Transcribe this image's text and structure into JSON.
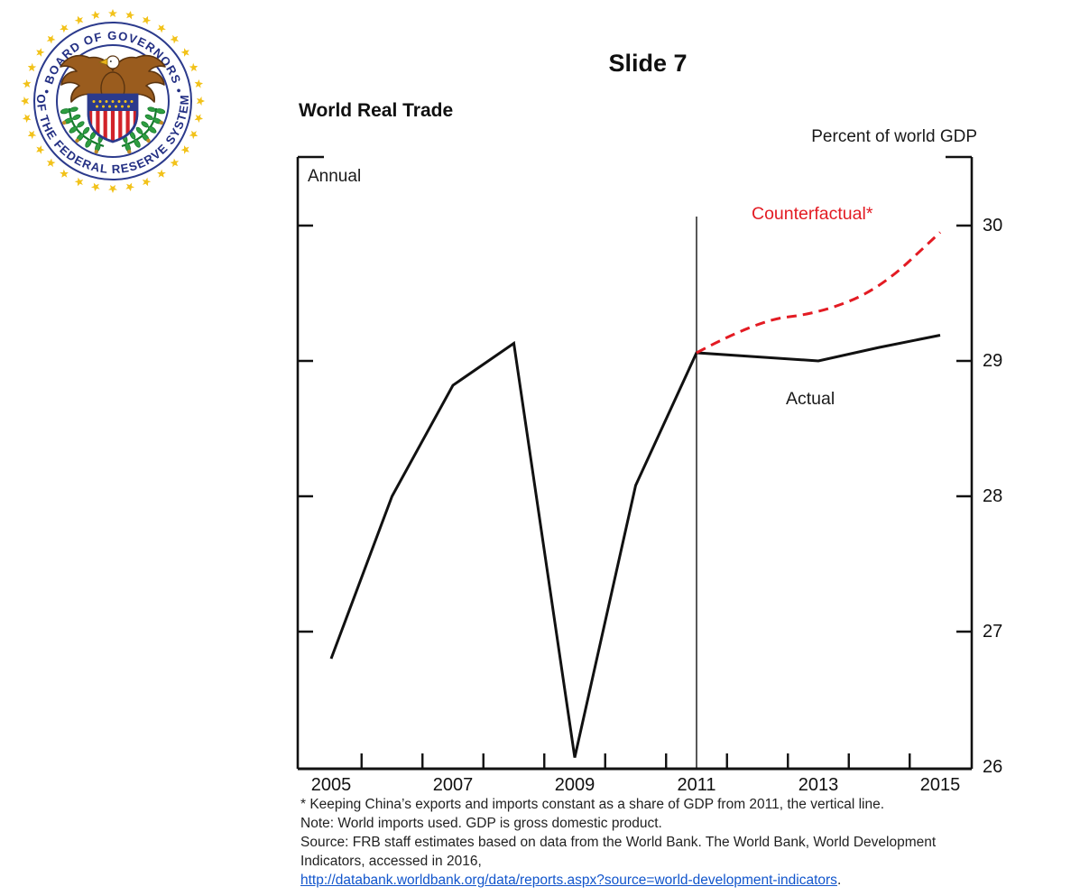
{
  "slide": {
    "title": "Slide 7"
  },
  "seal": {
    "top_text": "• BOARD OF GOVERNORS •",
    "bottom_text": "OF THE FEDERAL RESERVE SYSTEM"
  },
  "chart": {
    "title": "World Real Trade",
    "unit_label": "Percent of world GDP",
    "frequency_label": "Annual"
  },
  "chart_data": {
    "type": "line",
    "title": "World Real Trade",
    "ylabel": "Percent of world GDP",
    "frequency": "Annual",
    "x": [
      2005,
      2006,
      2007,
      2008,
      2009,
      2010,
      2011,
      2012,
      2013,
      2014,
      2015
    ],
    "series": [
      {
        "name": "Actual",
        "color": "#111111",
        "style": "solid",
        "values": [
          26.8,
          28.0,
          28.82,
          29.13,
          26.07,
          28.08,
          29.06,
          29.03,
          29.0,
          29.1,
          29.19
        ]
      },
      {
        "name": "Counterfactual*",
        "color": "#e31b23",
        "style": "dashed",
        "values": [
          null,
          null,
          null,
          null,
          null,
          null,
          29.06,
          29.3,
          29.35,
          29.53,
          29.95
        ]
      }
    ],
    "x_tick_labels": [
      "2005",
      "2007",
      "2009",
      "2011",
      "2013",
      "2015"
    ],
    "y_tick_labels": [
      "26",
      "27",
      "28",
      "29",
      "30"
    ],
    "ylim": [
      26,
      30.5
    ],
    "xlim": [
      2004.45,
      2015.55
    ],
    "vline_x": 2011,
    "grid": false,
    "legend_position": "inline-annotations"
  },
  "footnotes": {
    "line1": "* Keeping China’s exports and imports constant as a share of GDP from 2011, the vertical line.",
    "line2": "Note: World imports used. GDP is gross domestic product.",
    "line3": "Source: FRB staff estimates based on data from the World Bank. The World Bank, World Development",
    "line4": "Indicators, accessed in 2016,",
    "link_text": "http://databank.worldbank.org/data/reports.aspx?source=world-development-indicators",
    "link_suffix": "."
  }
}
